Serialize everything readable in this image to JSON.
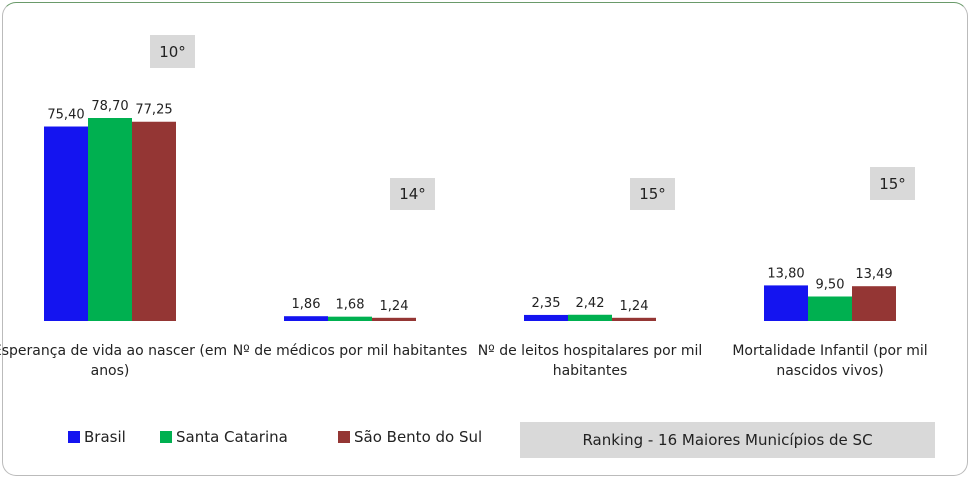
{
  "chart_data": {
    "type": "bar",
    "categories": [
      "Esperança de vida ao nascer (em anos)",
      "Nº de médicos por mil habitantes",
      "Nº de leitos hospitalares por mil habitantes",
      "Mortalidade Infantil (por mil nascidos vivos)"
    ],
    "series": [
      {
        "name": "Brasil",
        "color": "#1414f0",
        "values": [
          75.4,
          1.86,
          2.35,
          13.8
        ],
        "value_labels": [
          "75,40",
          "1,86",
          "2,35",
          "13,80"
        ]
      },
      {
        "name": "Santa Catarina",
        "color": "#00b050",
        "values": [
          78.7,
          1.68,
          2.42,
          9.5
        ],
        "value_labels": [
          "78,70",
          "1,68",
          "2,42",
          "9,50"
        ]
      },
      {
        "name": "São Bento do Sul",
        "color": "#943634",
        "values": [
          77.25,
          1.24,
          1.24,
          13.49
        ],
        "value_labels": [
          "77,25",
          "1,24",
          "1,24",
          "13,49"
        ]
      }
    ],
    "annotations": [
      "10°",
      "14°",
      "15°",
      "15°",
      "Ranking - 16 Maiores Municípios de SC"
    ],
    "legend": "bottom-left"
  }
}
